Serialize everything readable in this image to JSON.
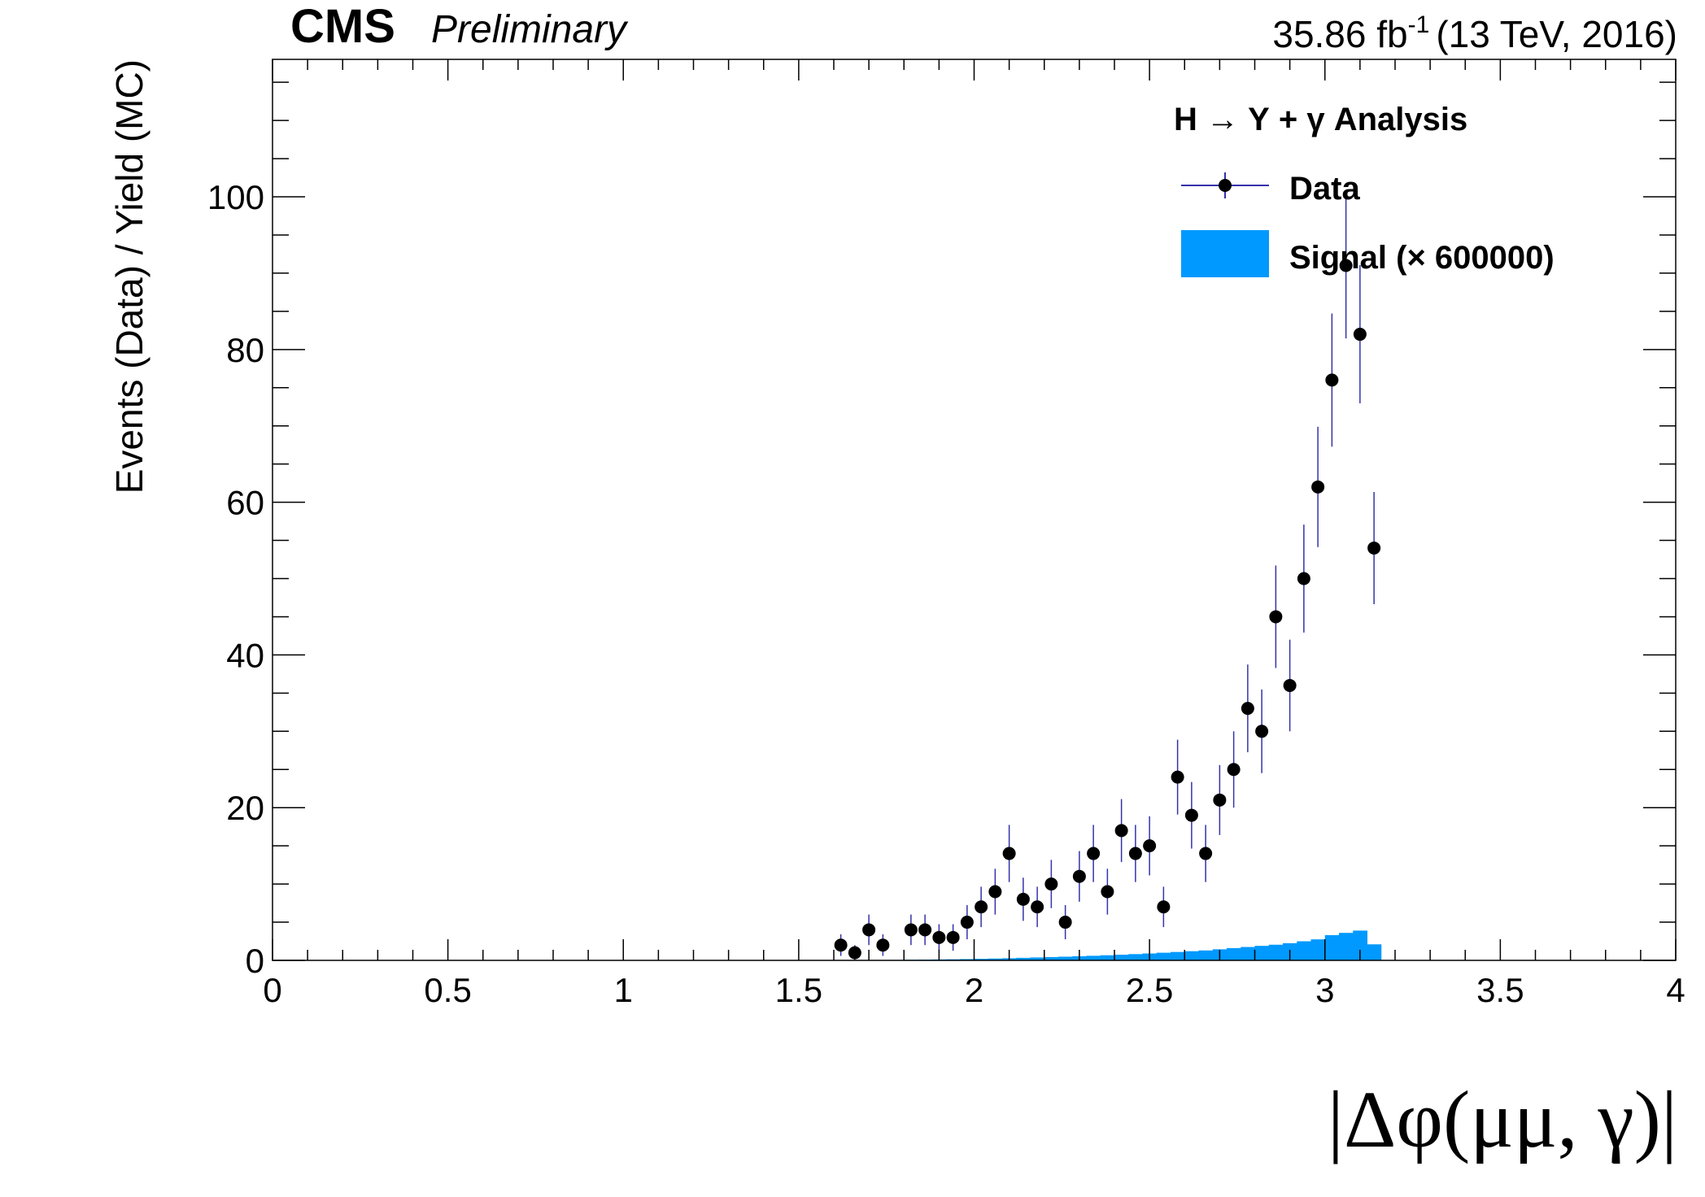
{
  "header": {
    "experiment": "CMS",
    "status": "Preliminary",
    "lumi_value": "35.86 fb",
    "lumi_exp": "-1",
    "energy": "(13 TeV, 2016)"
  },
  "legend": {
    "title": "H → Υ + γ Analysis",
    "data_label": "Data",
    "signal_label": "Signal (× 600000)"
  },
  "chart_data": {
    "type": "scatter",
    "xlabel": "|Δφ(μμ, γ)|",
    "ylabel": "Events (Data) / Yield (MC)",
    "xlim": [
      0,
      4
    ],
    "ylim": [
      0,
      118
    ],
    "xticks": [
      "0",
      "0.5",
      "1",
      "1.5",
      "2",
      "2.5",
      "3",
      "3.5",
      "4"
    ],
    "yticks": [
      "0",
      "20",
      "40",
      "60",
      "80",
      "100"
    ],
    "grid": false,
    "legend_position": "top-right",
    "colors": {
      "data": "#000000",
      "error_bar": "#3333aa",
      "signal": "#0099ff",
      "frame": "#000000"
    },
    "series": [
      {
        "name": "Data",
        "kind": "points-with-errors",
        "x": [
          1.62,
          1.66,
          1.7,
          1.74,
          1.82,
          1.86,
          1.9,
          1.94,
          1.98,
          2.02,
          2.06,
          2.1,
          2.14,
          2.18,
          2.22,
          2.26,
          2.3,
          2.34,
          2.38,
          2.42,
          2.46,
          2.5,
          2.54,
          2.58,
          2.62,
          2.66,
          2.7,
          2.74,
          2.78,
          2.82,
          2.86,
          2.9,
          2.94,
          2.98,
          3.02,
          3.06,
          3.1,
          3.14
        ],
        "y": [
          2,
          1,
          4,
          2,
          4,
          4,
          3,
          3,
          5,
          7,
          9,
          14,
          8,
          7,
          10,
          5,
          11,
          14,
          9,
          17,
          14,
          15,
          7,
          24,
          19,
          14,
          21,
          25,
          33,
          30,
          45,
          36,
          50,
          62,
          76,
          91,
          82,
          54
        ]
      },
      {
        "name": "Signal (× 600000)",
        "kind": "filled-histogram",
        "bin_width": 0.04,
        "bin_low_edges": [
          1.6,
          1.64,
          1.68,
          1.72,
          1.76,
          1.8,
          1.84,
          1.88,
          1.92,
          1.96,
          2.0,
          2.04,
          2.08,
          2.12,
          2.16,
          2.2,
          2.24,
          2.28,
          2.32,
          2.36,
          2.4,
          2.44,
          2.48,
          2.52,
          2.56,
          2.6,
          2.64,
          2.68,
          2.72,
          2.76,
          2.8,
          2.84,
          2.88,
          2.92,
          2.96,
          3.0,
          3.04,
          3.08,
          3.12
        ],
        "values": [
          0.02,
          0.03,
          0.04,
          0.05,
          0.06,
          0.08,
          0.1,
          0.12,
          0.14,
          0.17,
          0.2,
          0.24,
          0.28,
          0.33,
          0.38,
          0.43,
          0.48,
          0.54,
          0.6,
          0.67,
          0.74,
          0.82,
          0.9,
          1.0,
          1.1,
          1.2,
          1.3,
          1.45,
          1.6,
          1.75,
          1.9,
          2.05,
          2.25,
          2.5,
          2.75,
          3.3,
          3.6,
          3.9,
          2.1
        ]
      }
    ]
  }
}
